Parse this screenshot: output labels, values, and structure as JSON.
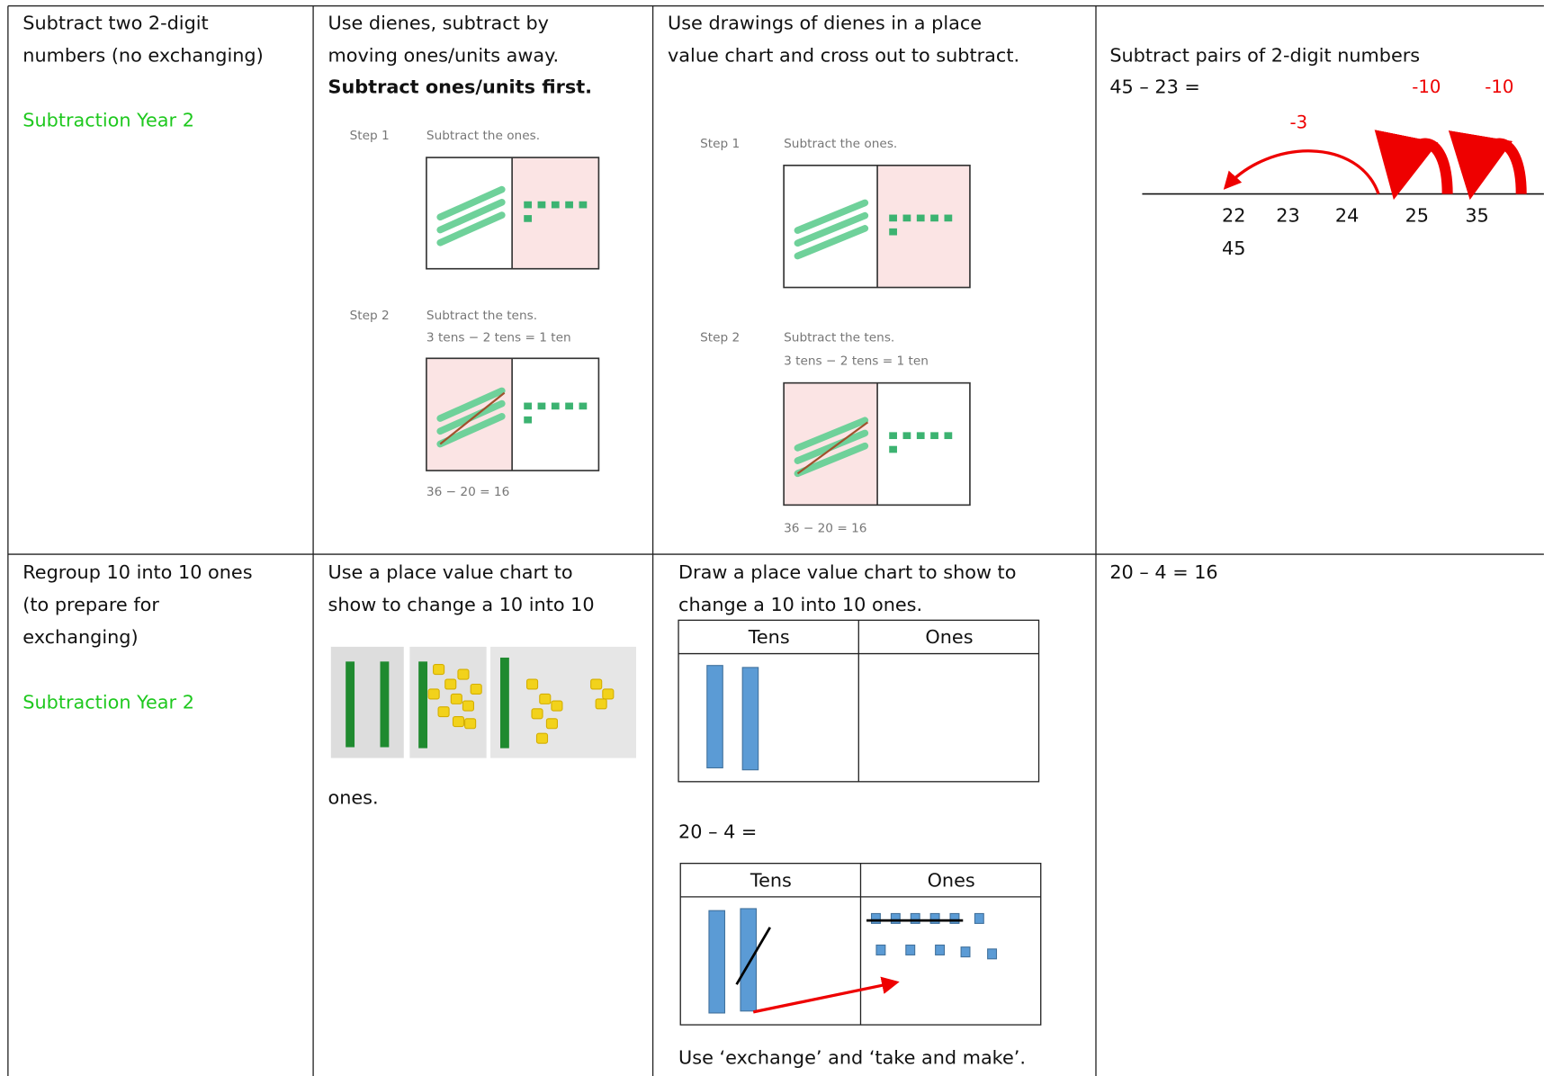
{
  "table": {
    "rows": [
      {
        "objective": [
          "Subtract two 2-digit",
          "numbers (no exchanging)"
        ],
        "label": "Subtraction Year 2",
        "concrete": {
          "lines": [
            "Use dienes, subtract by",
            "moving ones/units away."
          ],
          "bold": "Subtract ones/units first.",
          "steps": [
            {
              "step": "Step 1",
              "text": "Subtract the ones."
            },
            {
              "step": "Step 2",
              "text": "Subtract the tens.",
              "sub": "3 tens − 2 tens = 1 ten"
            }
          ],
          "equation": "36 − 20 = 16"
        },
        "pictorial": {
          "lines": [
            "Use drawings of dienes in a place",
            "value chart and cross out to subtract."
          ],
          "steps": [
            {
              "step": "Step 1",
              "text": "Subtract the ones."
            },
            {
              "step": "Step 2",
              "text": "Subtract the tens.",
              "sub": "3 tens − 2 tens = 1 ten"
            }
          ],
          "equation": "36 − 20 = 16"
        },
        "abstract": {
          "lines": [
            "Subtract pairs of 2-digit numbers",
            "45 – 23 ="
          ],
          "jumps": [
            "-10",
            "-10",
            "-3"
          ],
          "number_line": [
            "22",
            "23",
            "24",
            "25",
            "35"
          ],
          "below": "45"
        }
      },
      {
        "objective": [
          "Regroup 10 into 10 ones",
          "(to prepare for",
          "exchanging)"
        ],
        "label": "Subtraction Year 2",
        "concrete": {
          "lines": [
            "Use a place value chart to",
            "show to change a 10 into 10"
          ],
          "after": "ones."
        },
        "pictorial": {
          "lines": [
            "Draw a place value chart to show to",
            "change a 10 into 10 ones."
          ],
          "headers": [
            "Tens",
            "Ones"
          ],
          "equation": "20 – 4 =",
          "footer": "Use ‘exchange’ and ‘take and make’."
        },
        "abstract": {
          "lines": [
            "20 – 4 = 16"
          ]
        }
      }
    ]
  }
}
